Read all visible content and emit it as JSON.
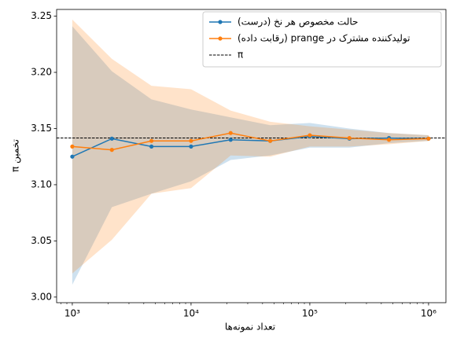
{
  "chart_data": {
    "type": "line",
    "x_label": "تعداد نمونه‌ها",
    "y_label": "تخمین π",
    "x": [
      1000,
      2154,
      4642,
      10000,
      21544,
      46416,
      100000,
      215443,
      464159,
      1000000
    ],
    "series": [
      {
        "name": "حالت مخصوص هر نخ (درست)",
        "color": "#1f77b4",
        "values": [
          3.125,
          3.141,
          3.134,
          3.134,
          3.14,
          3.139,
          3.143,
          3.141,
          3.1415,
          3.141
        ],
        "lower": [
          3.011,
          3.08,
          3.092,
          3.103,
          3.122,
          3.126,
          3.133,
          3.133,
          3.137,
          3.139
        ],
        "upper": [
          3.241,
          3.201,
          3.176,
          3.167,
          3.16,
          3.153,
          3.155,
          3.15,
          3.146,
          3.144
        ]
      },
      {
        "name": "تولیدکننده مشترک در prange (رقابت داده)",
        "color": "#ff7f0e",
        "values": [
          3.134,
          3.131,
          3.139,
          3.139,
          3.146,
          3.139,
          3.144,
          3.1415,
          3.14,
          3.141
        ],
        "lower": [
          3.021,
          3.051,
          3.092,
          3.097,
          3.126,
          3.125,
          3.134,
          3.134,
          3.136,
          3.139
        ],
        "upper": [
          3.247,
          3.212,
          3.188,
          3.185,
          3.166,
          3.156,
          3.152,
          3.149,
          3.146,
          3.144
        ]
      }
    ],
    "reference_line": {
      "name": "π",
      "value": 3.14159,
      "color": "#000000"
    },
    "x_log": true,
    "xlim": [
      738,
      1400000
    ],
    "xticks": [
      {
        "value": 1000,
        "label": "10³"
      },
      {
        "value": 10000,
        "label": "10⁴"
      },
      {
        "value": 100000,
        "label": "10⁵"
      },
      {
        "value": 1000000,
        "label": "10⁶"
      }
    ],
    "ylim": [
      2.995,
      3.256
    ],
    "yticks": [
      {
        "value": 3,
        "label": "3.00"
      },
      3.05,
      {
        "value": 3.1,
        "label": "3.10"
      },
      3.15,
      {
        "value": 3.2,
        "label": "3.20"
      },
      3.25
    ],
    "legend": "upper right"
  }
}
